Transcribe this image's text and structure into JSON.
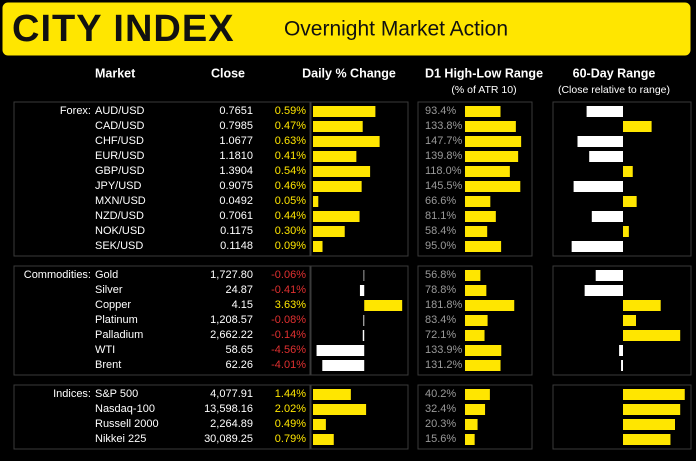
{
  "header": {
    "logo": "CITY INDEX",
    "title": "Overnight Market Action"
  },
  "columns": {
    "market": "Market",
    "close": "Close",
    "change": "Daily % Change",
    "d1": "D1 High-Low Range",
    "d1_sub": "(% of ATR 10)",
    "range": "60-Day Range",
    "range_sub": "(Close relative to range)"
  },
  "range_lim": [
    -100,
    100
  ],
  "groups": [
    {
      "label": "Forex:",
      "change_lim": [
        0,
        0.87
      ],
      "d1_lim": [
        0,
        171
      ],
      "rows": [
        {
          "market": "AUD/USD",
          "close": "0.7651",
          "change": 0.59,
          "change_label": "0.59%",
          "d1": 93.4,
          "d1_label": "93.4%",
          "range": -56
        },
        {
          "market": "CAD/USD",
          "close": "0.7985",
          "change": 0.47,
          "change_label": "0.47%",
          "d1": 133.8,
          "d1_label": "133.8%",
          "range": 44
        },
        {
          "market": "CHF/USD",
          "close": "1.0677",
          "change": 0.63,
          "change_label": "0.63%",
          "d1": 147.7,
          "d1_label": "147.7%",
          "range": -70
        },
        {
          "market": "EUR/USD",
          "close": "1.1810",
          "change": 0.41,
          "change_label": "0.41%",
          "d1": 139.8,
          "d1_label": "139.8%",
          "range": -52
        },
        {
          "market": "GBP/USD",
          "close": "1.3904",
          "change": 0.54,
          "change_label": "0.54%",
          "d1": 118.0,
          "d1_label": "118.0%",
          "range": 15
        },
        {
          "market": "JPY/USD",
          "close": "0.9075",
          "change": 0.46,
          "change_label": "0.46%",
          "d1": 145.5,
          "d1_label": "145.5%",
          "range": -76
        },
        {
          "market": "MXN/USD",
          "close": "0.0492",
          "change": 0.05,
          "change_label": "0.05%",
          "d1": 66.6,
          "d1_label": "66.6%",
          "range": 21
        },
        {
          "market": "NZD/USD",
          "close": "0.7061",
          "change": 0.44,
          "change_label": "0.44%",
          "d1": 81.1,
          "d1_label": "81.1%",
          "range": -48
        },
        {
          "market": "NOK/USD",
          "close": "0.1175",
          "change": 0.3,
          "change_label": "0.30%",
          "d1": 58.4,
          "d1_label": "58.4%",
          "range": 9
        },
        {
          "market": "SEK/USD",
          "close": "0.1148",
          "change": 0.09,
          "change_label": "0.09%",
          "d1": 95.0,
          "d1_label": "95.0%",
          "range": -79
        }
      ]
    },
    {
      "label": "Commodities:",
      "change_lim": [
        -4.9,
        3.9
      ],
      "d1_lim": [
        0,
        240
      ],
      "rows": [
        {
          "market": "Gold",
          "close": "1,727.80",
          "change": -0.06,
          "change_label": "-0.06%",
          "d1": 56.8,
          "d1_label": "56.8%",
          "range": -42
        },
        {
          "market": "Silver",
          "close": "24.87",
          "change": -0.41,
          "change_label": "-0.41%",
          "d1": 78.8,
          "d1_label": "78.8%",
          "range": -59
        },
        {
          "market": "Copper",
          "close": "4.15",
          "change": 3.63,
          "change_label": "3.63%",
          "d1": 181.8,
          "d1_label": "181.8%",
          "range": 58
        },
        {
          "market": "Platinum",
          "close": "1,208.57",
          "change": -0.08,
          "change_label": "-0.08%",
          "d1": 83.4,
          "d1_label": "83.4%",
          "range": 20
        },
        {
          "market": "Palladium",
          "close": "2,662.22",
          "change": -0.14,
          "change_label": "-0.14%",
          "d1": 72.1,
          "d1_label": "72.1%",
          "range": 88
        },
        {
          "market": "WTI",
          "close": "58.65",
          "change": -4.56,
          "change_label": "-4.56%",
          "d1": 133.9,
          "d1_label": "133.9%",
          "range": -6
        },
        {
          "market": "Brent",
          "close": "62.26",
          "change": -4.01,
          "change_label": "-4.01%",
          "d1": 131.2,
          "d1_label": "131.2%",
          "range": -3
        }
      ]
    },
    {
      "label": "Indices:",
      "change_lim": [
        0,
        3.5
      ],
      "d1_lim": [
        0,
        105
      ],
      "rows": [
        {
          "market": "S&P 500",
          "close": "4,077.91",
          "change": 1.44,
          "change_label": "1.44%",
          "d1": 40.2,
          "d1_label": "40.2%",
          "range": 95
        },
        {
          "market": "Nasdaq-100",
          "close": "13,598.16",
          "change": 2.02,
          "change_label": "2.02%",
          "d1": 32.4,
          "d1_label": "32.4%",
          "range": 88
        },
        {
          "market": "Russell 2000",
          "close": "2,264.89",
          "change": 0.49,
          "change_label": "0.49%",
          "d1": 20.3,
          "d1_label": "20.3%",
          "range": 80
        },
        {
          "market": "Nikkei 225",
          "close": "30,089.25",
          "change": 0.79,
          "change_label": "0.79%",
          "d1": 15.6,
          "d1_label": "15.6%",
          "range": 73
        }
      ]
    }
  ]
}
